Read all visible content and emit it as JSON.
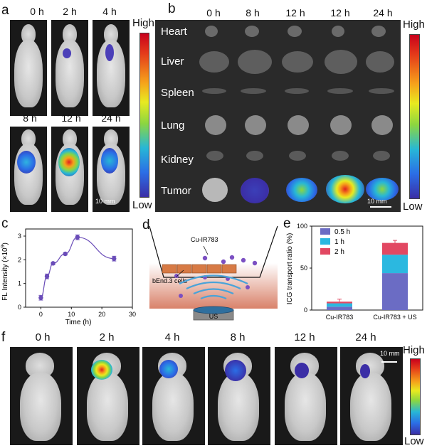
{
  "panel_a": {
    "label": "a",
    "times_row1": [
      "0 h",
      "2 h",
      "4 h"
    ],
    "times_row2": [
      "8 h",
      "12 h",
      "24 h"
    ],
    "scale_high": "High",
    "scale_low": "Low",
    "scale_bar": "10 mm"
  },
  "panel_b": {
    "label": "b",
    "times": [
      "0 h",
      "8 h",
      "12 h",
      "12 h",
      "24 h"
    ],
    "organs": [
      "Heart",
      "Liver",
      "Spleen",
      "Lung",
      "Kidney",
      "Tumor"
    ],
    "scale_high": "High",
    "scale_low": "Low",
    "scale_bar": "10 mm"
  },
  "panel_c": {
    "label": "c",
    "chart_data": {
      "type": "line",
      "x": [
        0,
        2,
        4,
        8,
        12,
        24
      ],
      "y": [
        0.4,
        1.3,
        1.85,
        2.25,
        2.95,
        2.05
      ],
      "err": [
        0.1,
        0.1,
        0.05,
        0.05,
        0.1,
        0.1
      ],
      "xlabel": "Time (h)",
      "ylabel_main": "FL Intensity (×10",
      "ylabel_exp": "9",
      "ylabel_end": ")",
      "xlim": [
        -5,
        30
      ],
      "ylim": [
        0,
        3.3
      ],
      "xticks": [
        "0",
        "10",
        "20",
        "30"
      ],
      "yticks": [
        "0",
        "1",
        "2",
        "3"
      ],
      "color": "#6a4cb8"
    }
  },
  "panel_d": {
    "label": "d",
    "cu_label": "Cu-IR783",
    "cells_label": "bEnd.3 cells",
    "us_label": "US"
  },
  "panel_e": {
    "label": "e",
    "chart_data": {
      "type": "bar",
      "categories": [
        "Cu-IR783",
        "Cu-IR783 + US"
      ],
      "series": [
        {
          "name": "0.5 h",
          "values": [
            4,
            44
          ],
          "color": "#6b6cc4"
        },
        {
          "name": "1 h",
          "values": [
            4,
            22
          ],
          "color": "#2bb8e0"
        },
        {
          "name": "2 h",
          "values": [
            2,
            14
          ],
          "color": "#e24862"
        }
      ],
      "ylabel": "ICG transport ratio (%)",
      "ylim": [
        0,
        100
      ],
      "yticks": [
        "0",
        "50",
        "100"
      ]
    }
  },
  "panel_f": {
    "label": "f",
    "times": [
      "0 h",
      "2 h",
      "4 h",
      "8 h",
      "12 h",
      "24 h"
    ],
    "scale_high": "High",
    "scale_low": "Low",
    "scale_bar": "10 mm"
  }
}
